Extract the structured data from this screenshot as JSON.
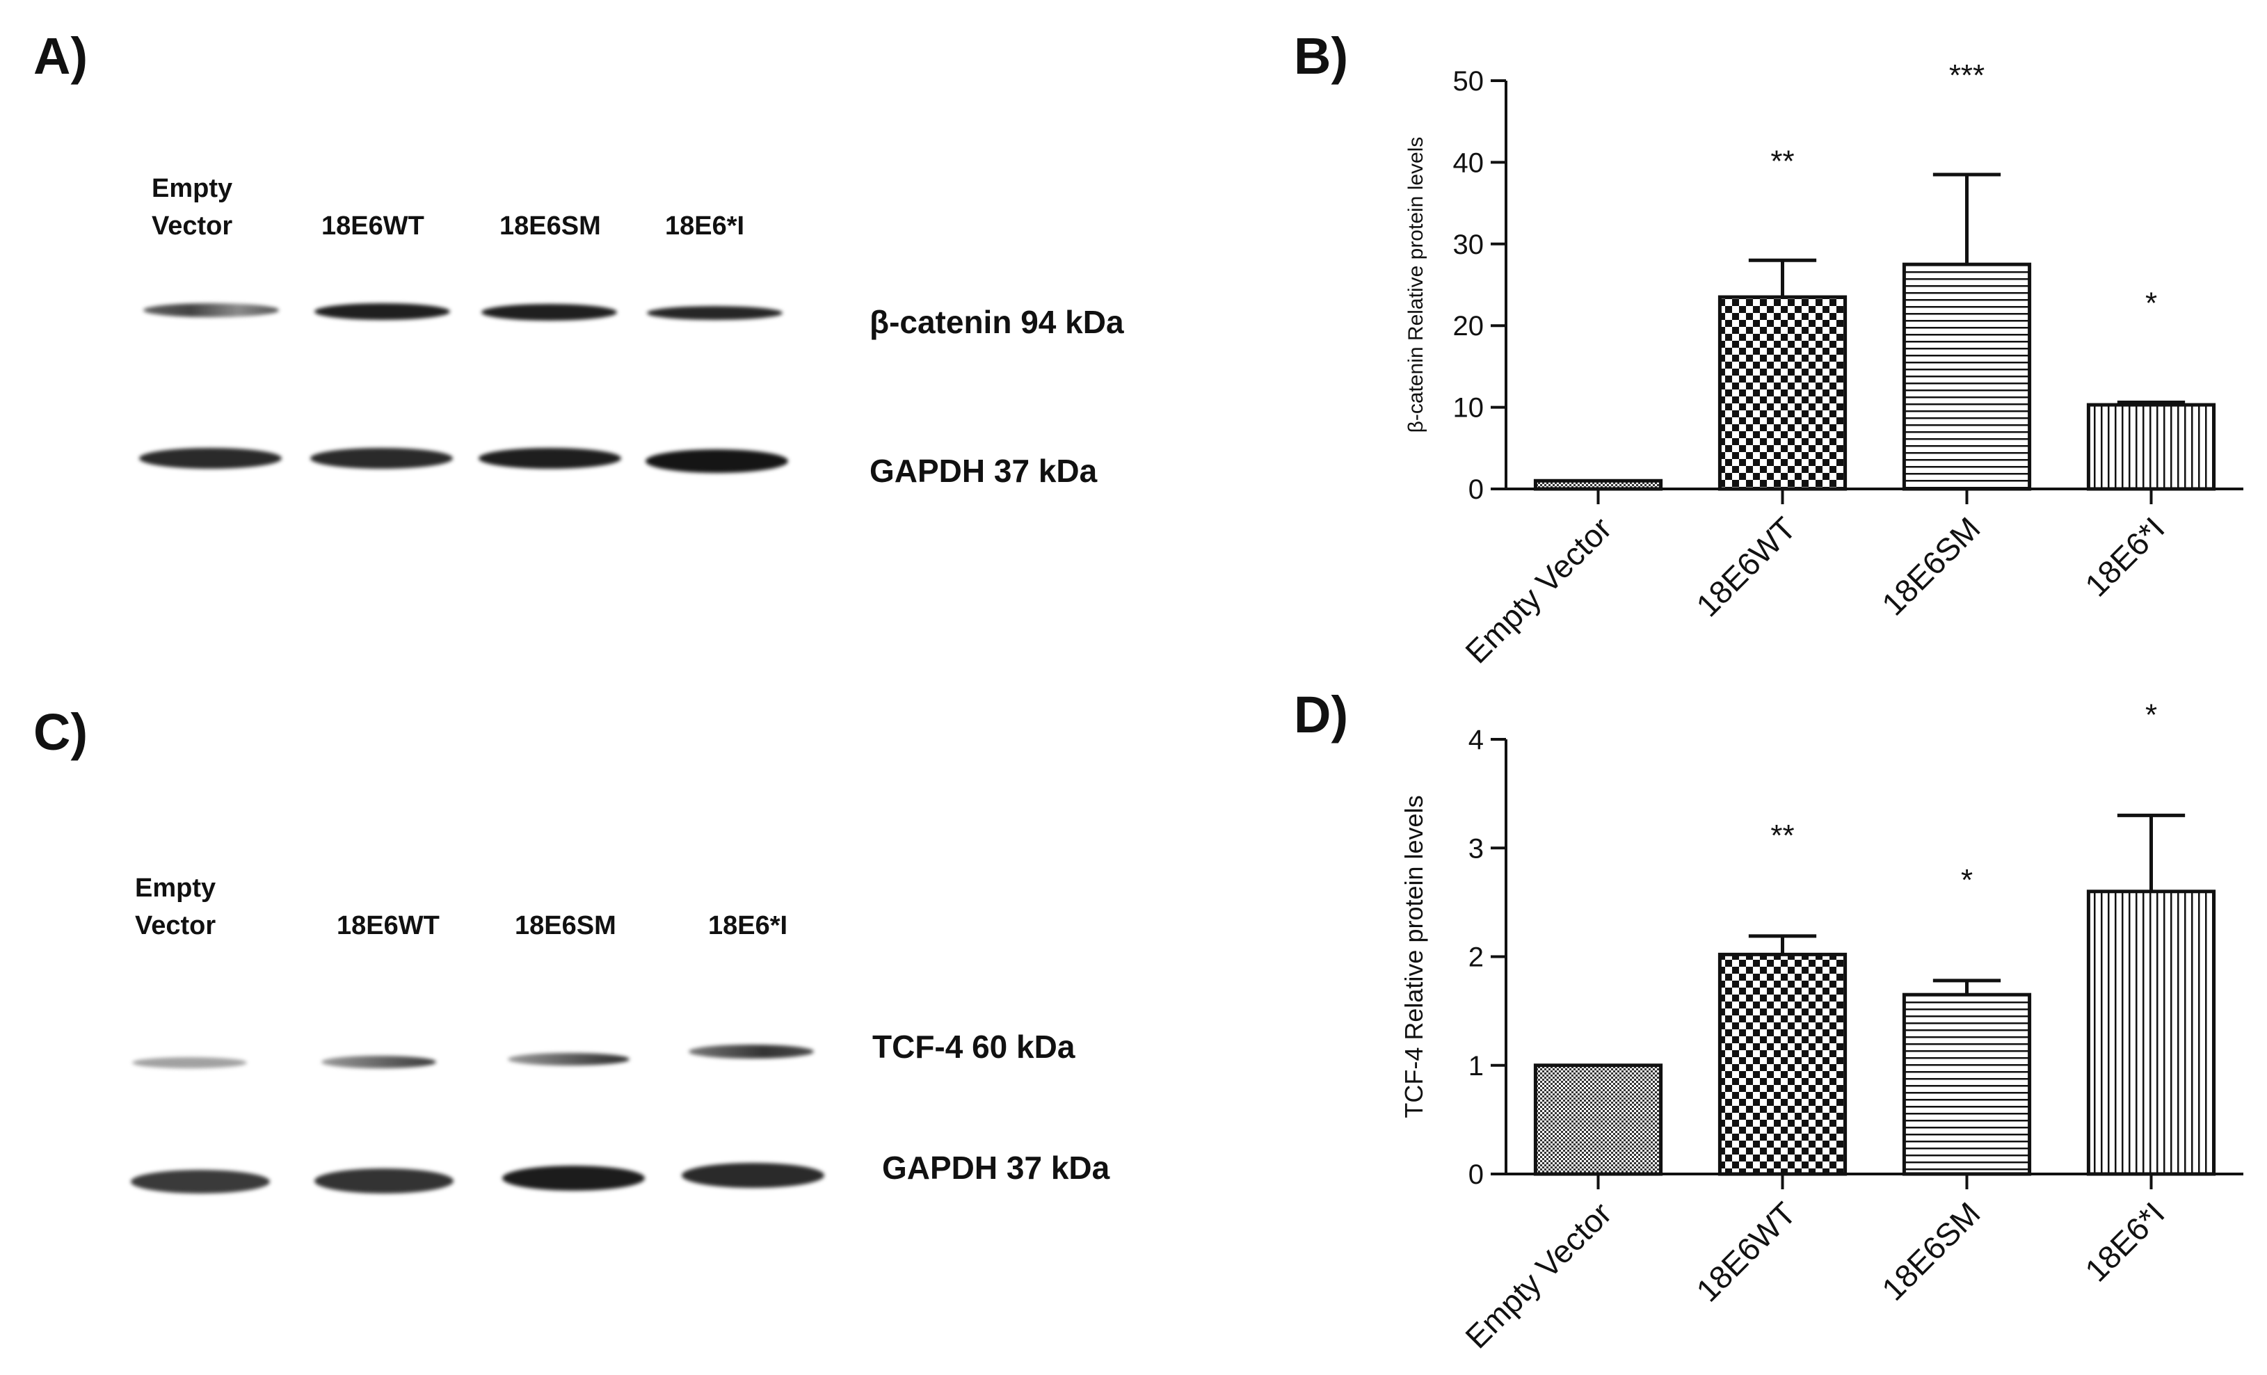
{
  "panels": {
    "A": {
      "letter": "A)",
      "lane_labels": [
        "Empty\nVector",
        "18E6WT",
        "18E6SM",
        "18E6*I"
      ],
      "band_labels": [
        "β-catenin  94 kDa",
        "GAPDH 37 kDa"
      ]
    },
    "B": {
      "letter": "B)"
    },
    "C": {
      "letter": "C)",
      "lane_labels": [
        "Empty\nVector",
        "18E6WT",
        "18E6SM",
        "18E6*I"
      ],
      "band_labels": [
        "TCF-4 60 kDa",
        "GAPDH 37 kDa"
      ]
    },
    "D": {
      "letter": "D)"
    }
  },
  "chart_data": [
    {
      "panel": "B",
      "type": "bar",
      "categories": [
        "Empty Vector",
        "18E6WT",
        "18E6SM",
        "18E6*I"
      ],
      "values": [
        1,
        23.5,
        27.5,
        10.3
      ],
      "error_upper": [
        0,
        4.5,
        11,
        0.3
      ],
      "significance": [
        "",
        "**",
        "***",
        "*"
      ],
      "patterns": [
        "dense",
        "checker",
        "hlines",
        "vlines"
      ],
      "ylabel": "β-catenin Relative protein levels",
      "xlabel": "",
      "ylim": [
        0,
        50
      ],
      "yticks": [
        "0",
        "10",
        "20",
        "30",
        "40",
        "50"
      ]
    },
    {
      "panel": "D",
      "type": "bar",
      "categories": [
        "Empty Vector",
        "18E6WT",
        "18E6SM",
        "18E6*I"
      ],
      "values": [
        1,
        2.02,
        1.65,
        2.6
      ],
      "error_upper": [
        0,
        0.17,
        0.13,
        0.7
      ],
      "significance": [
        "",
        "**",
        "*",
        "*"
      ],
      "patterns": [
        "dense",
        "checker",
        "hlines",
        "vlines"
      ],
      "ylabel": "TCF-4 Relative protein levels",
      "xlabel": "",
      "ylim": [
        0,
        4
      ],
      "yticks": [
        "0",
        "1",
        "2",
        "3",
        "4"
      ]
    }
  ]
}
